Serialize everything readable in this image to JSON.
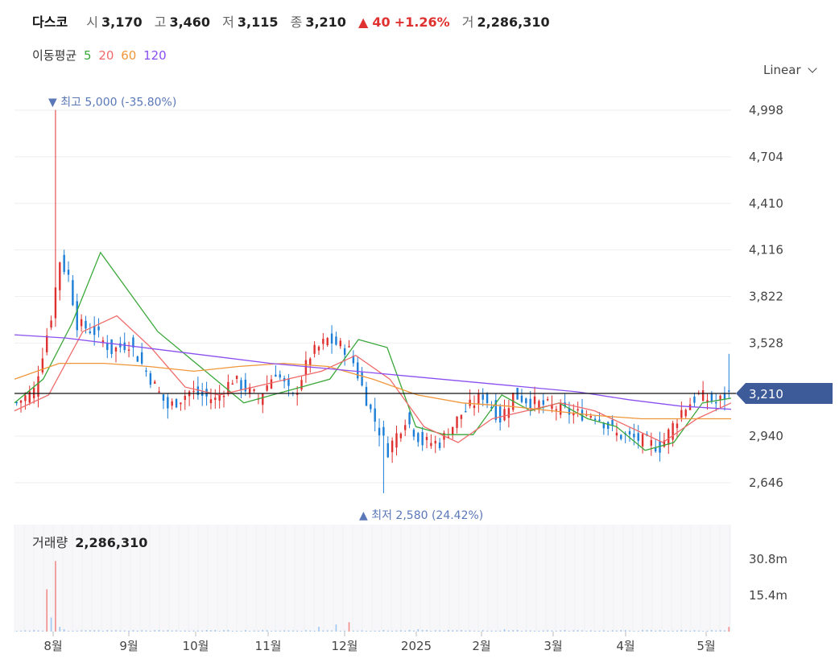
{
  "header": {
    "name": "다스코",
    "open_label": "시",
    "open": "3,170",
    "high_label": "고",
    "high": "3,460",
    "low_label": "저",
    "low": "3,115",
    "close_label": "종",
    "close": "3,210",
    "change_arrow": "▲",
    "change": "40",
    "change_pct": "+1.26%",
    "volume_label": "거",
    "volume": "2,286,310"
  },
  "moving_average": {
    "label": "이동평균",
    "periods": [
      {
        "value": "5",
        "color": "#3aa83a"
      },
      {
        "value": "20",
        "color": "#f06a6a"
      },
      {
        "value": "60",
        "color": "#f0963a"
      },
      {
        "value": "120",
        "color": "#8a4ff0"
      }
    ]
  },
  "scale_selector": {
    "label": "Linear"
  },
  "volume_panel": {
    "label": "거래량",
    "value": "2,286,310"
  },
  "chart_data": {
    "type": "candlestick",
    "price_ticks": [
      "4,998",
      "4,704",
      "4,410",
      "4,116",
      "3,822",
      "3,528",
      "2,940",
      "2,646"
    ],
    "price_tick_values": [
      4998,
      4704,
      4410,
      4116,
      3822,
      3528,
      2940,
      2646
    ],
    "current_price_label": "3,210",
    "current_price": 3210,
    "high_annotation": {
      "arrow": "▼",
      "label": "최고",
      "value": "5,000",
      "pct": "(-35.80%)",
      "price": 5000
    },
    "low_annotation": {
      "arrow": "▲",
      "label": "최저",
      "value": "2,580",
      "pct": "(24.42%)",
      "price": 2580
    },
    "x_labels": [
      "8월",
      "9월",
      "10월",
      "11월",
      "12월",
      "2025",
      "2월",
      "3월",
      "4월",
      "5월"
    ],
    "volume_ticks": [
      "30.8m",
      "15.4m"
    ],
    "volume_tick_values": [
      30.8,
      15.4
    ],
    "colors": {
      "up": "#e03131",
      "down": "#1c7ed6",
      "ma5": "#3aa83a",
      "ma20": "#f06a6a",
      "ma60": "#f0963a",
      "ma120": "#8a4ff0",
      "badge": "#3d5a99"
    },
    "close_path": [
      {
        "i": 0,
        "close": 3150
      },
      {
        "i": 4,
        "close": 3230
      },
      {
        "i": 8,
        "close": 3700
      },
      {
        "i": 10,
        "close": 4050
      },
      {
        "i": 12,
        "close": 3950
      },
      {
        "i": 14,
        "close": 3650
      },
      {
        "i": 18,
        "close": 3600
      },
      {
        "i": 22,
        "close": 3480
      },
      {
        "i": 26,
        "close": 3530
      },
      {
        "i": 30,
        "close": 3350
      },
      {
        "i": 35,
        "close": 3120
      },
      {
        "i": 40,
        "close": 3220
      },
      {
        "i": 46,
        "close": 3170
      },
      {
        "i": 50,
        "close": 3300
      },
      {
        "i": 56,
        "close": 3180
      },
      {
        "i": 60,
        "close": 3350
      },
      {
        "i": 64,
        "close": 3180
      },
      {
        "i": 68,
        "close": 3450
      },
      {
        "i": 72,
        "close": 3550
      },
      {
        "i": 77,
        "close": 3480
      },
      {
        "i": 82,
        "close": 3100
      },
      {
        "i": 86,
        "close": 2850
      },
      {
        "i": 90,
        "close": 3050
      },
      {
        "i": 94,
        "close": 2900
      },
      {
        "i": 98,
        "close": 2900
      },
      {
        "i": 103,
        "close": 3080
      },
      {
        "i": 108,
        "close": 3200
      },
      {
        "i": 112,
        "close": 3050
      },
      {
        "i": 115,
        "close": 3200
      },
      {
        "i": 120,
        "close": 3150
      },
      {
        "i": 125,
        "close": 3120
      },
      {
        "i": 129,
        "close": 3080
      },
      {
        "i": 134,
        "close": 3080
      },
      {
        "i": 139,
        "close": 2950
      },
      {
        "i": 144,
        "close": 2920
      },
      {
        "i": 149,
        "close": 2870
      },
      {
        "i": 154,
        "close": 3100
      },
      {
        "i": 158,
        "close": 3200
      },
      {
        "i": 162,
        "close": 3150
      },
      {
        "i": 165,
        "close": 3210
      }
    ],
    "ma_values": {
      "ma5": [
        3150,
        3300,
        3650,
        4100,
        3850,
        3600,
        3450,
        3300,
        3150,
        3200,
        3250,
        3300,
        3550,
        3500,
        3000,
        2950,
        2950,
        3200,
        3100,
        3150,
        3050,
        3000,
        2850,
        2900,
        3150,
        3180
      ],
      "ma20": [
        3100,
        3200,
        3600,
        3700,
        3500,
        3250,
        3200,
        3250,
        3300,
        3350,
        3450,
        3300,
        3000,
        2900,
        3050,
        3100,
        3150,
        3100,
        3000,
        2900,
        3050,
        3150
      ],
      "ma60": [
        3300,
        3400,
        3400,
        3380,
        3350,
        3380,
        3400,
        3380,
        3300,
        3200,
        3150,
        3130,
        3100,
        3070,
        3050,
        3050,
        3050
      ],
      "ma120": [
        3580,
        3560,
        3520,
        3480,
        3440,
        3400,
        3370,
        3340,
        3310,
        3280,
        3250,
        3220,
        3170,
        3130,
        3110
      ]
    }
  }
}
